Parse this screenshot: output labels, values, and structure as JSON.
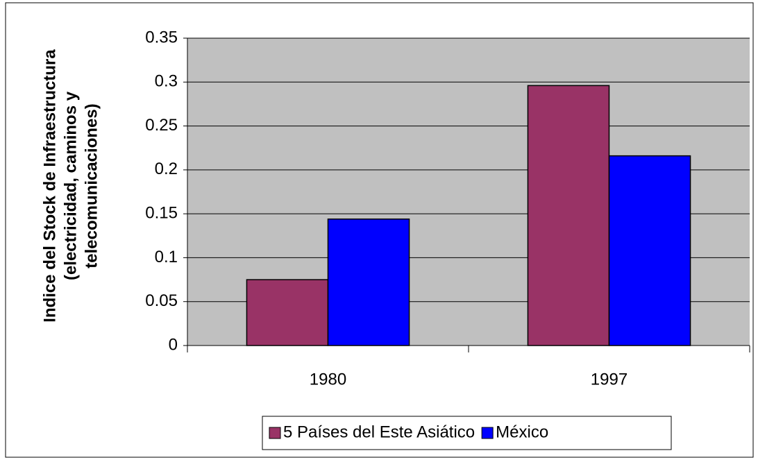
{
  "chart_data": {
    "type": "bar",
    "ylabel": [
      "Indice del Stock de Infraestructura",
      "(electricidad, caminos y",
      "telecomunicaciones)"
    ],
    "categories": [
      "1980",
      "1997"
    ],
    "series": [
      {
        "name": "5 Países del Este Asiático",
        "color": "#993366",
        "values": [
          0.075,
          0.296
        ]
      },
      {
        "name": "México",
        "color": "#0000ff",
        "values": [
          0.144,
          0.216
        ]
      }
    ],
    "ylim": [
      0,
      0.35
    ],
    "yticks": [
      0,
      0.05,
      0.1,
      0.15,
      0.2,
      0.25,
      0.3,
      0.35
    ],
    "grid": true,
    "legend": "bottom"
  }
}
